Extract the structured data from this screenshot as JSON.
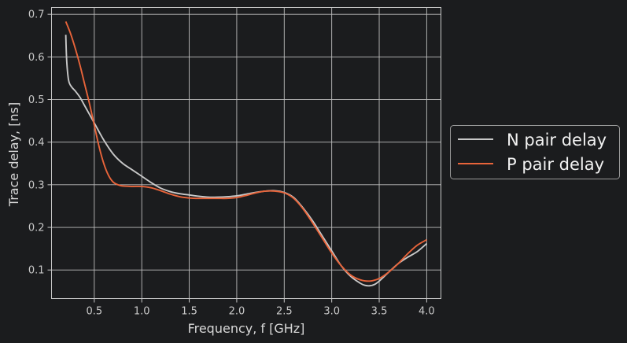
{
  "chart_data": {
    "type": "line",
    "xlabel": "Frequency, f [GHz]",
    "ylabel": "Trace delay, [ns]",
    "xlim": [
      0.05,
      4.15
    ],
    "ylim": [
      0.033,
      0.716
    ],
    "xticks": [
      0.5,
      1.0,
      1.5,
      2.0,
      2.5,
      3.0,
      3.5,
      4.0
    ],
    "yticks": [
      0.1,
      0.2,
      0.3,
      0.4,
      0.5,
      0.6,
      0.7
    ],
    "xtick_labels": [
      "0.5",
      "1.0",
      "1.5",
      "2.0",
      "2.5",
      "3.0",
      "3.5",
      "4.0"
    ],
    "ytick_labels": [
      "0.1",
      "0.2",
      "0.3",
      "0.4",
      "0.5",
      "0.6",
      "0.7"
    ],
    "grid": true,
    "legend_position": "outside-right",
    "series": [
      {
        "name": "N pair delay",
        "color": "#c8c8c8",
        "x": [
          0.2,
          0.21,
          0.23,
          0.26,
          0.3,
          0.35,
          0.4,
          0.5,
          0.6,
          0.7,
          0.8,
          0.9,
          1.0,
          1.1,
          1.2,
          1.3,
          1.4,
          1.5,
          1.6,
          1.7,
          1.8,
          1.9,
          2.0,
          2.1,
          2.2,
          2.3,
          2.4,
          2.5,
          2.6,
          2.7,
          2.8,
          2.9,
          3.0,
          3.1,
          3.2,
          3.3,
          3.35,
          3.4,
          3.45,
          3.5,
          3.6,
          3.7,
          3.8,
          3.9,
          4.0
        ],
        "y": [
          0.652,
          0.59,
          0.545,
          0.53,
          0.52,
          0.505,
          0.485,
          0.445,
          0.405,
          0.372,
          0.35,
          0.335,
          0.32,
          0.305,
          0.292,
          0.284,
          0.279,
          0.276,
          0.273,
          0.271,
          0.271,
          0.272,
          0.274,
          0.278,
          0.282,
          0.285,
          0.286,
          0.282,
          0.27,
          0.245,
          0.215,
          0.18,
          0.145,
          0.11,
          0.085,
          0.069,
          0.064,
          0.063,
          0.066,
          0.074,
          0.095,
          0.115,
          0.13,
          0.143,
          0.162
        ]
      },
      {
        "name": "P pair delay",
        "color": "#e8643a",
        "x": [
          0.2,
          0.25,
          0.3,
          0.35,
          0.4,
          0.45,
          0.5,
          0.55,
          0.6,
          0.65,
          0.7,
          0.75,
          0.8,
          0.9,
          1.0,
          1.1,
          1.2,
          1.3,
          1.4,
          1.5,
          1.6,
          1.7,
          1.8,
          1.9,
          2.0,
          2.1,
          2.2,
          2.3,
          2.4,
          2.5,
          2.6,
          2.7,
          2.8,
          2.9,
          3.0,
          3.1,
          3.2,
          3.3,
          3.4,
          3.5,
          3.6,
          3.7,
          3.8,
          3.9,
          4.0
        ],
        "y": [
          0.683,
          0.655,
          0.62,
          0.58,
          0.535,
          0.49,
          0.44,
          0.39,
          0.35,
          0.322,
          0.306,
          0.3,
          0.297,
          0.296,
          0.296,
          0.293,
          0.286,
          0.278,
          0.272,
          0.269,
          0.268,
          0.268,
          0.268,
          0.268,
          0.27,
          0.275,
          0.281,
          0.285,
          0.285,
          0.281,
          0.268,
          0.243,
          0.21,
          0.175,
          0.14,
          0.11,
          0.088,
          0.077,
          0.074,
          0.08,
          0.095,
          0.115,
          0.138,
          0.158,
          0.171
        ]
      }
    ]
  }
}
